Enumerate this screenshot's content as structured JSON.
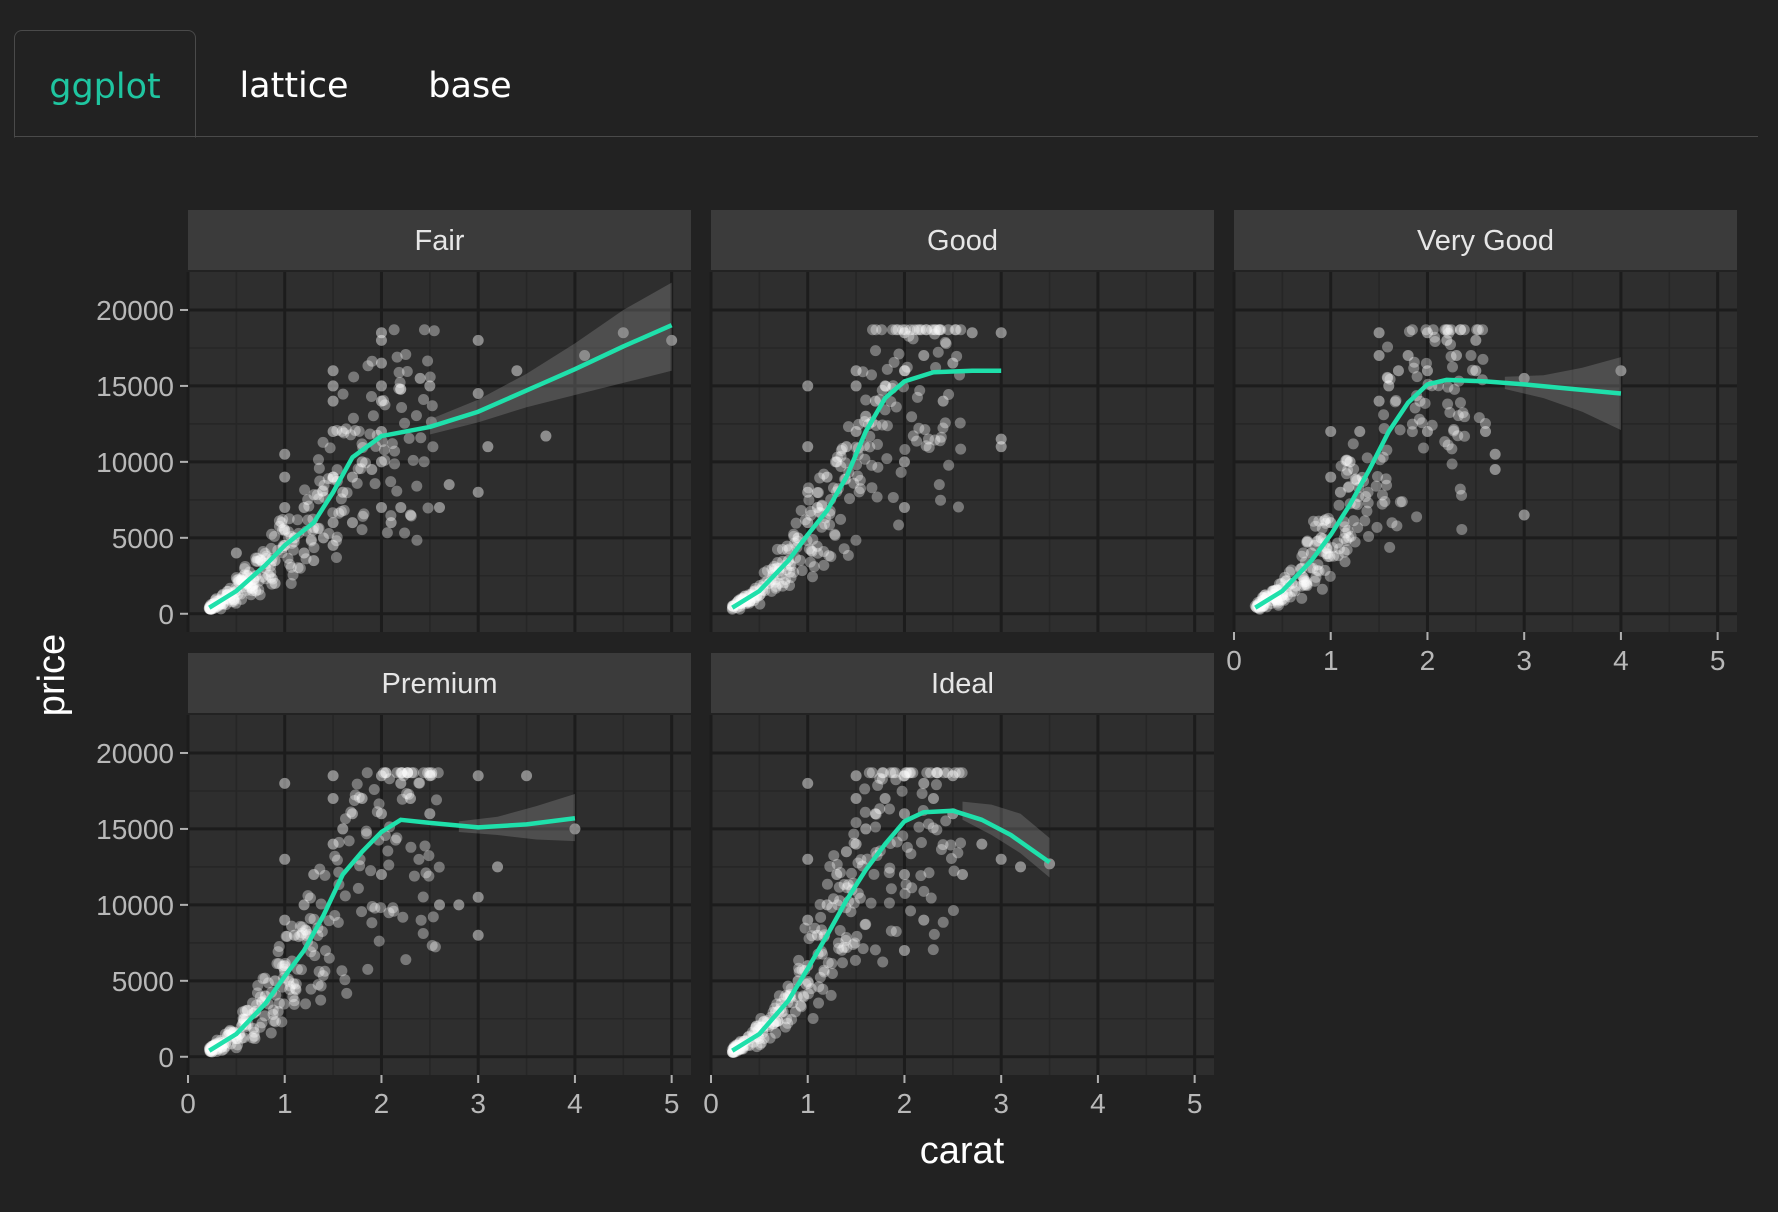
{
  "tabs": [
    {
      "label": "ggplot",
      "active": true
    },
    {
      "label": "lattice",
      "active": false
    },
    {
      "label": "base",
      "active": false
    }
  ],
  "colors": {
    "background": "#222222",
    "panel": "#2e2e2e",
    "strip": "#3b3b3b",
    "points": "#ffffff",
    "smooth": "#1fe0ab",
    "accent": "#1fc5a0"
  },
  "chart_data": {
    "type": "scatter",
    "xlabel": "carat",
    "ylabel": "price",
    "xlim": [
      0,
      5.2
    ],
    "ylim": [
      -1200,
      22500
    ],
    "x_ticks": [
      0,
      1,
      2,
      3,
      4,
      5
    ],
    "y_ticks": [
      0,
      5000,
      10000,
      15000,
      20000
    ],
    "grid": true,
    "facets": [
      {
        "name": "Fair",
        "smooth": [
          [
            0.22,
            400
          ],
          [
            0.5,
            1500
          ],
          [
            0.8,
            3200
          ],
          [
            1.0,
            4500
          ],
          [
            1.3,
            6000
          ],
          [
            1.5,
            8000
          ],
          [
            1.7,
            10300
          ],
          [
            2.0,
            11700
          ],
          [
            2.5,
            12300
          ],
          [
            3.0,
            13300
          ],
          [
            3.5,
            14700
          ],
          [
            4.0,
            16100
          ],
          [
            4.5,
            17600
          ],
          [
            5.0,
            19000
          ]
        ],
        "band": [
          [
            2.5,
            11800,
            12800
          ],
          [
            3.0,
            12600,
            14100
          ],
          [
            3.5,
            13600,
            15800
          ],
          [
            4.0,
            14400,
            17800
          ],
          [
            4.5,
            15200,
            20000
          ],
          [
            5.0,
            16000,
            21800
          ]
        ],
        "points": [
          [
            0.3,
            500
          ],
          [
            0.4,
            1000
          ],
          [
            0.5,
            1500
          ],
          [
            0.5,
            4000
          ],
          [
            0.6,
            2000
          ],
          [
            0.7,
            2500
          ],
          [
            0.7,
            1500
          ],
          [
            0.8,
            3000
          ],
          [
            0.9,
            3500
          ],
          [
            0.9,
            2000
          ],
          [
            1.0,
            4500
          ],
          [
            1.0,
            5500
          ],
          [
            1.0,
            10500
          ],
          [
            1.0,
            9000
          ],
          [
            1.0,
            7000
          ],
          [
            1.1,
            5000
          ],
          [
            1.2,
            7000
          ],
          [
            1.2,
            4000
          ],
          [
            1.3,
            3500
          ],
          [
            1.4,
            5000
          ],
          [
            1.5,
            6000
          ],
          [
            1.5,
            9000
          ],
          [
            1.5,
            12000
          ],
          [
            1.5,
            14000
          ],
          [
            1.5,
            16000
          ],
          [
            1.5,
            15000
          ],
          [
            1.5,
            4500
          ],
          [
            1.6,
            8000
          ],
          [
            1.7,
            9000
          ],
          [
            1.7,
            6000
          ],
          [
            1.8,
            10000
          ],
          [
            1.9,
            9500
          ],
          [
            2.0,
            7000
          ],
          [
            2.0,
            10000
          ],
          [
            2.0,
            12000
          ],
          [
            2.0,
            14000
          ],
          [
            2.0,
            15000
          ],
          [
            2.0,
            16500
          ],
          [
            2.0,
            18000
          ],
          [
            2.0,
            18500
          ],
          [
            2.1,
            6000
          ],
          [
            2.2,
            7000
          ],
          [
            2.3,
            6500
          ],
          [
            2.4,
            15500
          ],
          [
            2.5,
            15000
          ],
          [
            2.6,
            7000
          ],
          [
            2.7,
            8500
          ],
          [
            3.0,
            18000
          ],
          [
            3.0,
            14500
          ],
          [
            3.0,
            8000
          ],
          [
            3.1,
            11000
          ],
          [
            3.4,
            16000
          ],
          [
            3.7,
            11700
          ],
          [
            4.1,
            17000
          ],
          [
            4.5,
            18500
          ],
          [
            5.0,
            18000
          ]
        ]
      },
      {
        "name": "Good",
        "smooth": [
          [
            0.22,
            400
          ],
          [
            0.5,
            1500
          ],
          [
            0.8,
            3500
          ],
          [
            1.0,
            5200
          ],
          [
            1.2,
            6800
          ],
          [
            1.4,
            9000
          ],
          [
            1.6,
            12000
          ],
          [
            1.8,
            14200
          ],
          [
            2.0,
            15300
          ],
          [
            2.3,
            15900
          ],
          [
            2.7,
            16000
          ],
          [
            3.0,
            16000
          ]
        ],
        "band": [],
        "points": [
          [
            0.3,
            500
          ],
          [
            0.4,
            800
          ],
          [
            0.5,
            1200
          ],
          [
            0.6,
            2000
          ],
          [
            0.7,
            2800
          ],
          [
            0.8,
            3500
          ],
          [
            0.9,
            5000
          ],
          [
            1.0,
            6000
          ],
          [
            1.0,
            8000
          ],
          [
            1.0,
            11000
          ],
          [
            1.0,
            15000
          ],
          [
            1.1,
            7000
          ],
          [
            1.2,
            9000
          ],
          [
            1.3,
            10000
          ],
          [
            1.4,
            11000
          ],
          [
            1.5,
            12000
          ],
          [
            1.5,
            15000
          ],
          [
            1.5,
            16000
          ],
          [
            1.6,
            13000
          ],
          [
            1.7,
            14000
          ],
          [
            1.8,
            15000
          ],
          [
            2.0,
            16000
          ],
          [
            2.0,
            18500
          ],
          [
            2.0,
            10000
          ],
          [
            2.0,
            7000
          ],
          [
            2.2,
            17000
          ],
          [
            2.4,
            14000
          ],
          [
            2.5,
            16500
          ],
          [
            2.7,
            18500
          ],
          [
            3.0,
            18500
          ],
          [
            3.0,
            11500
          ],
          [
            3.0,
            11000
          ]
        ]
      },
      {
        "name": "Very Good",
        "smooth": [
          [
            0.22,
            400
          ],
          [
            0.5,
            1500
          ],
          [
            0.8,
            3500
          ],
          [
            1.0,
            5200
          ],
          [
            1.2,
            7200
          ],
          [
            1.4,
            9500
          ],
          [
            1.6,
            12000
          ],
          [
            1.8,
            13900
          ],
          [
            2.0,
            15100
          ],
          [
            2.2,
            15400
          ],
          [
            2.6,
            15300
          ],
          [
            3.0,
            15100
          ],
          [
            3.5,
            14800
          ],
          [
            4.0,
            14500
          ]
        ],
        "band": [
          [
            2.8,
            14800,
            15600
          ],
          [
            3.2,
            14200,
            15700
          ],
          [
            3.6,
            13300,
            16200
          ],
          [
            4.0,
            12100,
            16900
          ]
        ],
        "points": [
          [
            0.3,
            500
          ],
          [
            0.5,
            1200
          ],
          [
            0.6,
            2000
          ],
          [
            0.7,
            3000
          ],
          [
            0.8,
            4000
          ],
          [
            0.9,
            5000
          ],
          [
            1.0,
            6000
          ],
          [
            1.0,
            9000
          ],
          [
            1.0,
            12000
          ],
          [
            1.1,
            8000
          ],
          [
            1.2,
            10000
          ],
          [
            1.3,
            12000
          ],
          [
            1.5,
            14000
          ],
          [
            1.5,
            17000
          ],
          [
            1.5,
            18500
          ],
          [
            1.6,
            15000
          ],
          [
            1.7,
            16000
          ],
          [
            1.8,
            17000
          ],
          [
            2.0,
            18500
          ],
          [
            2.0,
            16000
          ],
          [
            2.0,
            12000
          ],
          [
            2.2,
            18000
          ],
          [
            2.3,
            17000
          ],
          [
            2.5,
            18000
          ],
          [
            2.5,
            16000
          ],
          [
            2.6,
            12000
          ],
          [
            2.7,
            10500
          ],
          [
            2.7,
            9500
          ],
          [
            3.0,
            6500
          ],
          [
            3.0,
            15500
          ],
          [
            4.0,
            16000
          ]
        ]
      },
      {
        "name": "Premium",
        "smooth": [
          [
            0.22,
            400
          ],
          [
            0.5,
            1500
          ],
          [
            0.8,
            3500
          ],
          [
            1.0,
            5300
          ],
          [
            1.2,
            7000
          ],
          [
            1.4,
            9300
          ],
          [
            1.6,
            12000
          ],
          [
            1.8,
            13500
          ],
          [
            2.0,
            14800
          ],
          [
            2.2,
            15600
          ],
          [
            2.5,
            15400
          ],
          [
            3.0,
            15100
          ],
          [
            3.5,
            15300
          ],
          [
            4.0,
            15700
          ]
        ],
        "band": [
          [
            2.8,
            14800,
            15500
          ],
          [
            3.2,
            14600,
            15800
          ],
          [
            3.6,
            14300,
            16500
          ],
          [
            4.0,
            14200,
            17300
          ]
        ],
        "points": [
          [
            0.3,
            500
          ],
          [
            0.5,
            1200
          ],
          [
            0.6,
            2000
          ],
          [
            0.7,
            3000
          ],
          [
            0.8,
            4000
          ],
          [
            0.9,
            5000
          ],
          [
            1.0,
            6000
          ],
          [
            1.0,
            9000
          ],
          [
            1.0,
            13000
          ],
          [
            1.0,
            18000
          ],
          [
            1.1,
            8000
          ],
          [
            1.2,
            10000
          ],
          [
            1.3,
            12000
          ],
          [
            1.5,
            14000
          ],
          [
            1.5,
            17000
          ],
          [
            1.5,
            18500
          ],
          [
            1.6,
            15000
          ],
          [
            1.7,
            16000
          ],
          [
            1.8,
            17000
          ],
          [
            2.0,
            18500
          ],
          [
            2.0,
            16000
          ],
          [
            2.0,
            12000
          ],
          [
            2.2,
            18000
          ],
          [
            2.3,
            17000
          ],
          [
            2.5,
            18500
          ],
          [
            2.5,
            16000
          ],
          [
            2.6,
            10000
          ],
          [
            2.8,
            10000
          ],
          [
            3.0,
            18500
          ],
          [
            3.0,
            8000
          ],
          [
            3.0,
            10500
          ],
          [
            3.2,
            12500
          ],
          [
            3.5,
            18500
          ],
          [
            4.0,
            15000
          ]
        ]
      },
      {
        "name": "Ideal",
        "smooth": [
          [
            0.22,
            400
          ],
          [
            0.5,
            1500
          ],
          [
            0.8,
            3700
          ],
          [
            1.0,
            5800
          ],
          [
            1.2,
            8000
          ],
          [
            1.4,
            10300
          ],
          [
            1.6,
            12300
          ],
          [
            1.8,
            14000
          ],
          [
            2.0,
            15500
          ],
          [
            2.2,
            16100
          ],
          [
            2.5,
            16200
          ],
          [
            2.8,
            15600
          ],
          [
            3.1,
            14600
          ],
          [
            3.5,
            12800
          ]
        ],
        "band": [
          [
            2.6,
            15600,
            16800
          ],
          [
            2.9,
            14600,
            16600
          ],
          [
            3.2,
            13400,
            16000
          ],
          [
            3.5,
            11800,
            14400
          ]
        ],
        "points": [
          [
            0.3,
            500
          ],
          [
            0.5,
            1200
          ],
          [
            0.6,
            2000
          ],
          [
            0.7,
            3000
          ],
          [
            0.8,
            4000
          ],
          [
            0.9,
            5000
          ],
          [
            1.0,
            6000
          ],
          [
            1.0,
            9000
          ],
          [
            1.0,
            13000
          ],
          [
            1.0,
            18000
          ],
          [
            1.1,
            8000
          ],
          [
            1.2,
            10000
          ],
          [
            1.3,
            12000
          ],
          [
            1.4,
            13500
          ],
          [
            1.5,
            14000
          ],
          [
            1.5,
            17000
          ],
          [
            1.5,
            18500
          ],
          [
            1.6,
            15000
          ],
          [
            1.7,
            16000
          ],
          [
            1.8,
            17000
          ],
          [
            2.0,
            18500
          ],
          [
            2.0,
            16000
          ],
          [
            2.0,
            12000
          ],
          [
            2.0,
            7000
          ],
          [
            2.2,
            9000
          ],
          [
            2.2,
            18000
          ],
          [
            2.3,
            17000
          ],
          [
            2.5,
            18500
          ],
          [
            2.5,
            16000
          ],
          [
            2.6,
            12000
          ],
          [
            2.8,
            14000
          ],
          [
            3.0,
            13000
          ],
          [
            3.2,
            12500
          ],
          [
            3.5,
            12700
          ]
        ]
      }
    ]
  }
}
